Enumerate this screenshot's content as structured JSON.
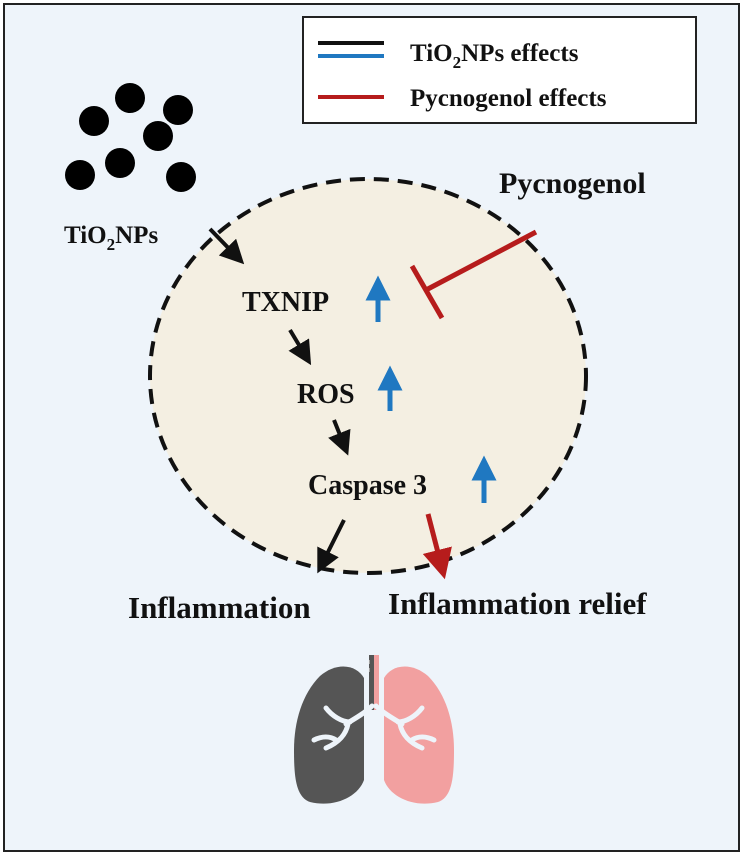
{
  "legend": {
    "tio2_prefix": "TiO",
    "tio2_sub": "2",
    "tio2_suffix": "NPs effects",
    "pyc_label": "Pycnogenol effects"
  },
  "nodes": {
    "tio2_prefix": "TiO",
    "tio2_sub": "2",
    "tio2_suffix": "NPs",
    "txnip": "TXNIP",
    "ros": "ROS",
    "caspase": "Caspase 3",
    "pycnogenol": "Pycnogenol",
    "inflammation": "Inflammation",
    "relief": "Inflammation relief"
  },
  "colors": {
    "background": "#eef4fa",
    "cell": "#f4efe2",
    "black": "#111111",
    "blue": "#1f78c1",
    "red": "#b61c1c",
    "lung_left": "#555555",
    "lung_right": "#f2a0a0"
  }
}
